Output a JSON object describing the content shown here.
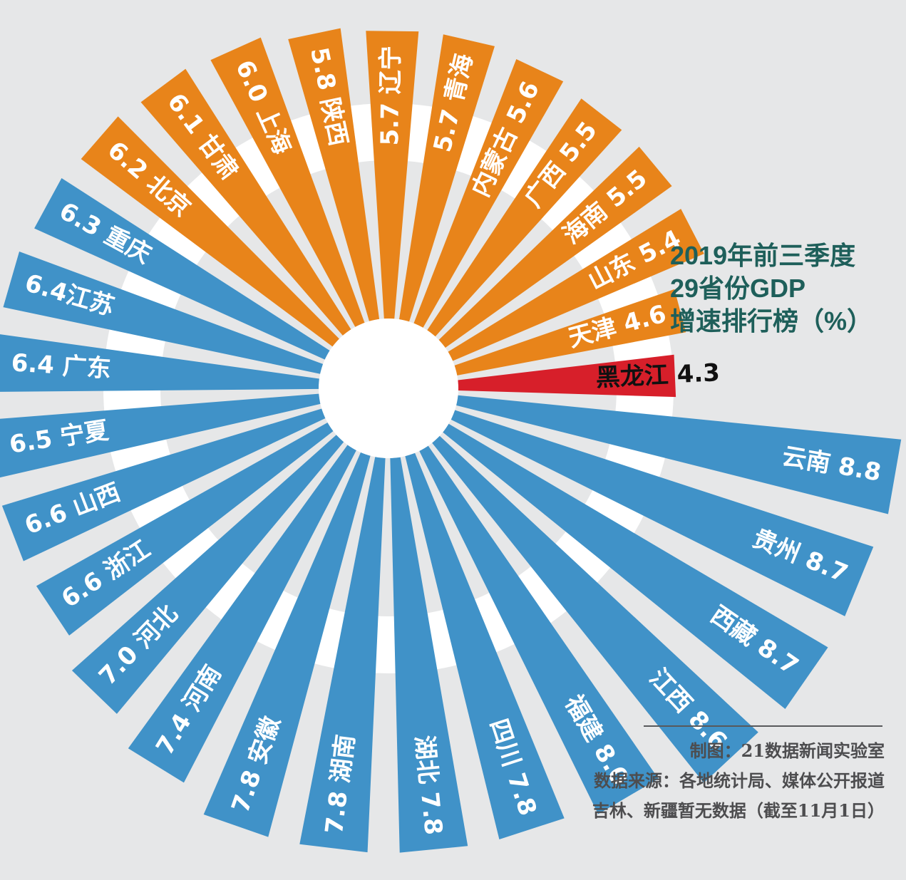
{
  "title_lines": [
    "2019年前三季度",
    "29省份GDP",
    "增速排行榜（%）"
  ],
  "credits": {
    "maker": "制图：21数据新闻实验室",
    "source": "数据来源：各地统计局、媒体公开报道",
    "note": "吉林、新疆暂无数据（截至11月1日）"
  },
  "colors": {
    "background": "#e6e7e8",
    "orange": "#e8841a",
    "blue": "#4092c8",
    "red": "#d71f2a",
    "center": "#ffffff",
    "title": "#1e5f5a"
  },
  "chart_data": {
    "type": "bar",
    "layout": "radial",
    "unit": "%",
    "title": "2019年前三季度 29省份GDP 增速排行榜（%）",
    "bars": [
      {
        "label": "黑龙江 4.3",
        "region": "黑龙江",
        "value": 4.3,
        "group": "red"
      },
      {
        "label": "天津 4.6",
        "region": "天津",
        "value": 4.6,
        "group": "orange"
      },
      {
        "label": "山东 5.4",
        "region": "山东",
        "value": 5.4,
        "group": "orange"
      },
      {
        "label": "海南 5.5",
        "region": "海南",
        "value": 5.5,
        "group": "orange"
      },
      {
        "label": "广西 5.5",
        "region": "广西",
        "value": 5.5,
        "group": "orange"
      },
      {
        "label": "内蒙古 5.6",
        "region": "内蒙古",
        "value": 5.6,
        "group": "orange"
      },
      {
        "label": "5.7 青海",
        "region": "青海",
        "value": 5.7,
        "group": "orange"
      },
      {
        "label": "5.7 辽宁",
        "region": "辽宁",
        "value": 5.7,
        "group": "orange"
      },
      {
        "label": "5.8 陕西",
        "region": "陕西",
        "value": 5.8,
        "group": "orange"
      },
      {
        "label": "6.0 上海",
        "region": "上海",
        "value": 6.0,
        "group": "orange"
      },
      {
        "label": "6.1 甘肃",
        "region": "甘肃",
        "value": 6.1,
        "group": "orange"
      },
      {
        "label": "6.2 北京",
        "region": "北京",
        "value": 6.2,
        "group": "orange"
      },
      {
        "label": "6.3 重庆",
        "region": "重庆",
        "value": 6.3,
        "group": "blue"
      },
      {
        "label": "6.4江苏",
        "region": "江苏",
        "value": 6.4,
        "group": "blue"
      },
      {
        "label": "6.4 广东",
        "region": "广东",
        "value": 6.4,
        "group": "blue"
      },
      {
        "label": "6.5 宁夏",
        "region": "宁夏",
        "value": 6.5,
        "group": "blue"
      },
      {
        "label": "6.6 山西",
        "region": "山西",
        "value": 6.6,
        "group": "blue"
      },
      {
        "label": "6.6 浙江",
        "region": "浙江",
        "value": 6.6,
        "group": "blue"
      },
      {
        "label": "7.0 河北",
        "region": "河北",
        "value": 7.0,
        "group": "blue"
      },
      {
        "label": "7.4 河南",
        "region": "河南",
        "value": 7.4,
        "group": "blue"
      },
      {
        "label": "7.8 安徽",
        "region": "安徽",
        "value": 7.8,
        "group": "blue"
      },
      {
        "label": "7.8 湖南",
        "region": "湖南",
        "value": 7.8,
        "group": "blue"
      },
      {
        "label": "湖北 7.8",
        "region": "湖北",
        "value": 7.8,
        "group": "blue"
      },
      {
        "label": "四川 7.8",
        "region": "四川",
        "value": 7.8,
        "group": "blue"
      },
      {
        "label": "福建 8.0",
        "region": "福建",
        "value": 8.0,
        "group": "blue"
      },
      {
        "label": "江西 8.6",
        "region": "江西",
        "value": 8.6,
        "group": "blue"
      },
      {
        "label": "西藏 8.7",
        "region": "西藏",
        "value": 8.7,
        "group": "blue"
      },
      {
        "label": "贵州 8.7",
        "region": "贵州",
        "value": 8.7,
        "group": "blue"
      },
      {
        "label": "云南 8.8",
        "region": "云南",
        "value": 8.8,
        "group": "blue"
      }
    ]
  }
}
